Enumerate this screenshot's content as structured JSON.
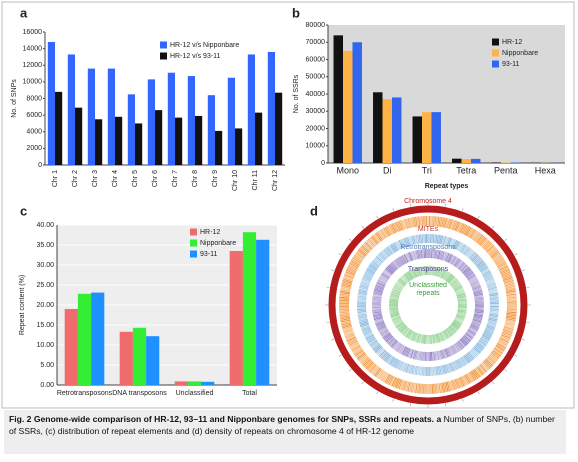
{
  "panels": [
    "a",
    "b",
    "c",
    "d"
  ],
  "chart_data": [
    {
      "type": "bar",
      "ylabel": "No. of SNPs",
      "categories": [
        "Chr 1",
        "Chr 2",
        "Chr 3",
        "Chr 4",
        "Chr 5",
        "Chr 6",
        "Chr 7",
        "Chr 8",
        "Chr 9",
        "Chr 10",
        "Chr 11",
        "Chr 12"
      ],
      "series": [
        {
          "name": "HR-12 v/s Nipponbare",
          "color": "#3366ff",
          "values": [
            14800,
            13300,
            11600,
            11600,
            8500,
            10300,
            11100,
            10700,
            8400,
            10500,
            13300,
            13600
          ]
        },
        {
          "name": "HR-12 v/s 93-11",
          "color": "#111111",
          "values": [
            8800,
            6900,
            5500,
            5800,
            5000,
            6600,
            5700,
            5900,
            4100,
            4400,
            6300,
            8700
          ]
        }
      ],
      "ylim": [
        0,
        16000
      ],
      "yticks": [
        0,
        2000,
        4000,
        6000,
        8000,
        10000,
        12000,
        14000,
        16000
      ],
      "grid": false,
      "background": "#ffffff",
      "legend": "upper right"
    },
    {
      "type": "bar",
      "ylabel": "No. of SSRs",
      "xlabel": "Repeat types",
      "categories": [
        "Mono",
        "Di",
        "Tri",
        "Tetra",
        "Penta",
        "Hexa"
      ],
      "series": [
        {
          "name": "HR-12",
          "color": "#111111",
          "values": [
            74000,
            41000,
            27000,
            2500,
            300,
            100
          ]
        },
        {
          "name": "Nipponbare",
          "color": "#ffb347",
          "values": [
            65000,
            37000,
            29500,
            2300,
            300,
            100
          ]
        },
        {
          "name": "93-11",
          "color": "#3366ee",
          "values": [
            70000,
            38000,
            29500,
            2400,
            300,
            100
          ]
        }
      ],
      "ylim": [
        0,
        80000
      ],
      "yticks": [
        0,
        10000,
        20000,
        30000,
        40000,
        50000,
        60000,
        70000,
        80000
      ],
      "grid": false,
      "background": "#d9d9d9",
      "legend": "upper right"
    },
    {
      "type": "bar",
      "ylabel": "Repeat content (%)",
      "categories": [
        "Retrotransposons",
        "DNA transposons",
        "Unclassified",
        "Total"
      ],
      "series": [
        {
          "name": "HR-12",
          "color": "#f06b6b",
          "values": [
            19.0,
            13.3,
            0.9,
            33.5
          ]
        },
        {
          "name": "Nipponbare",
          "color": "#33ee33",
          "values": [
            22.8,
            14.3,
            0.9,
            38.2
          ]
        },
        {
          "name": "93-11",
          "color": "#1e90ff",
          "values": [
            23.1,
            12.2,
            0.8,
            36.3
          ]
        }
      ],
      "ylim": [
        0,
        40
      ],
      "yticks": [
        {
          "value": 0,
          "label": "0.00"
        },
        {
          "value": 5,
          "label": "5.00"
        },
        {
          "value": 10,
          "label": "10.00"
        },
        {
          "value": 15,
          "label": "15.00"
        },
        {
          "value": 20,
          "label": "20.00"
        },
        {
          "value": 25,
          "label": "25.00"
        },
        {
          "value": 30,
          "label": "30.00"
        },
        {
          "value": 35,
          "label": "35.00"
        },
        {
          "value": 40,
          "label": "40.00"
        }
      ],
      "grid": true,
      "background": "#eeeeee",
      "legend": "upper right"
    }
  ],
  "circos": {
    "chromosome": "Chromosome 4",
    "rings": [
      "MITEs",
      "Retrotransposons",
      "Transposons",
      "Unclassified repeats"
    ]
  },
  "caption": {
    "label": "Fig. 2",
    "title": "Genome-wide comparison of HR-12, 93–11 and Nipponbare genomes for SNPs, SSRs and repeats.",
    "panel": "a",
    "text": "Number of SNPs, (b) number of SSRs, (c) distribution of repeat elements and (d) density of repeats on chromosome 4 of HR-12 genome"
  }
}
